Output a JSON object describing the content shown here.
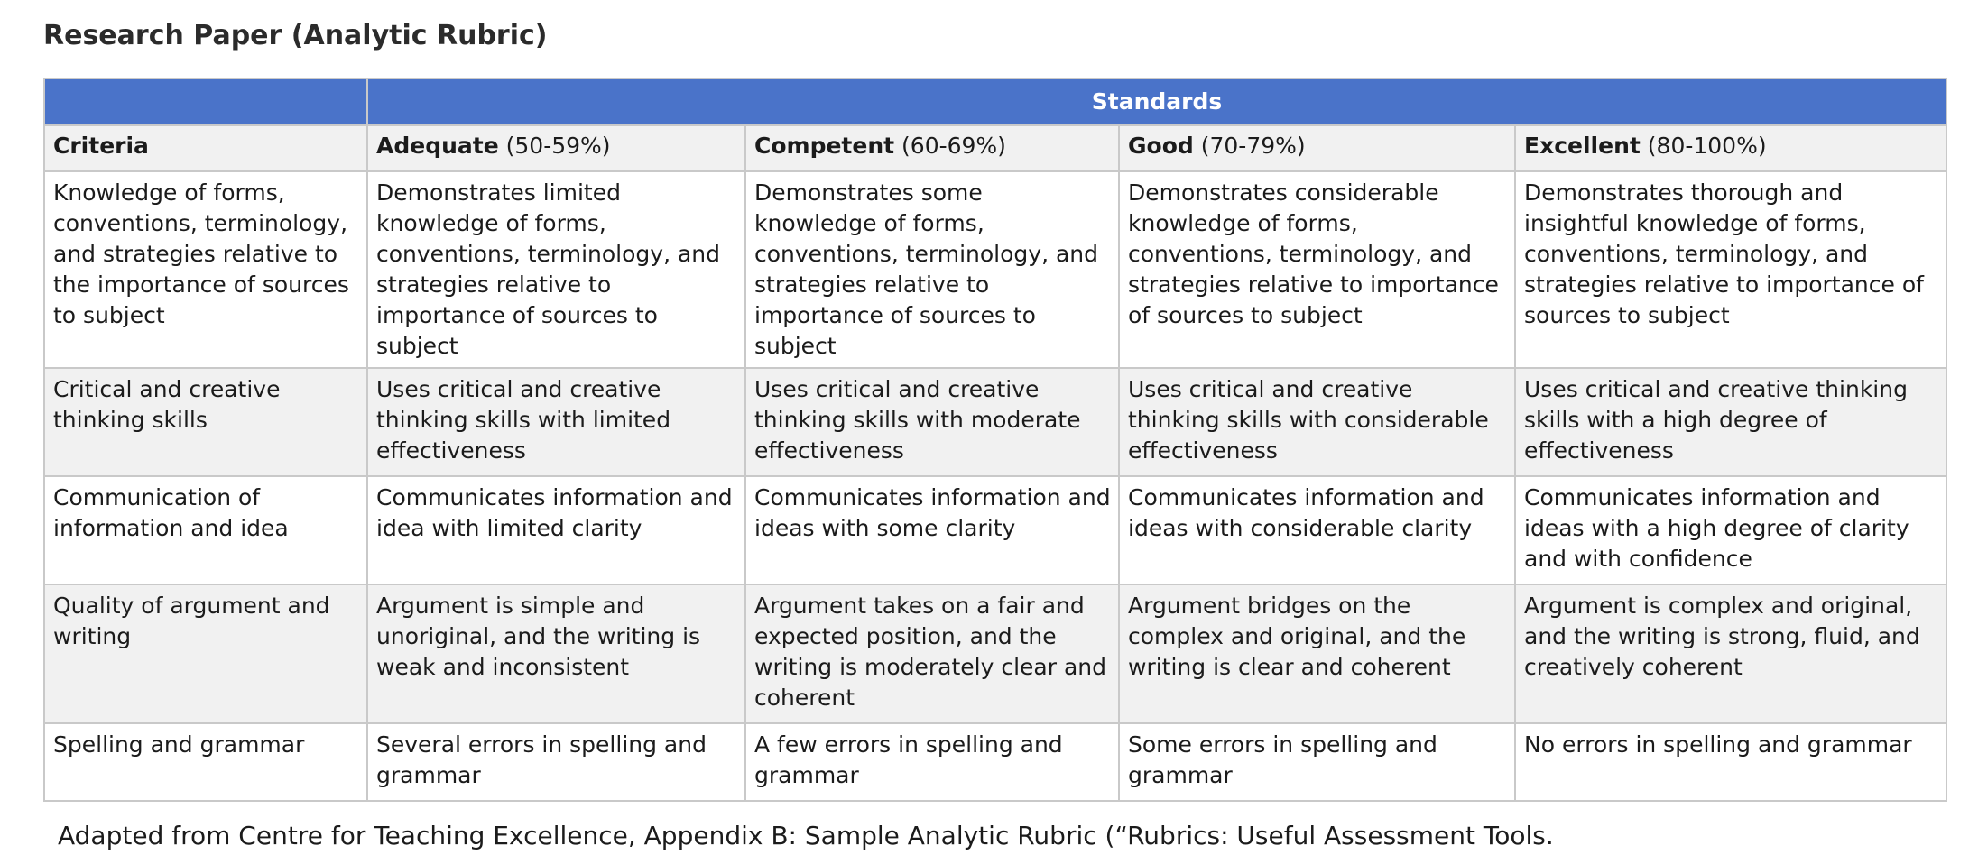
{
  "title": "Research Paper (Analytic Rubric)",
  "table": {
    "standards_header": "Standards",
    "criteria_header": "Criteria",
    "levels": [
      {
        "name": "Adequate",
        "range": "(50-59%)"
      },
      {
        "name": "Competent",
        "range": "(60-69%)"
      },
      {
        "name": "Good",
        "range": "(70-79%)"
      },
      {
        "name": "Excellent",
        "range": "(80-100%)"
      }
    ],
    "rows": [
      {
        "criterion": "Knowledge of forms, conventions, terminology, and strategies relative to the importance of sources to subject",
        "cells": [
          "Demonstrates limited knowledge of forms, conventions, terminology, and strategies relative to importance of sources to subject",
          "Demonstrates some knowledge of forms, conventions, terminology, and strategies relative to importance of sources to subject",
          "Demonstrates considerable knowledge of forms, conventions, terminology, and strategies relative to importance of sources to subject",
          "Demonstrates thorough and insightful knowledge of forms, conventions, terminology, and strategies relative to importance of sources to subject"
        ]
      },
      {
        "criterion": "Critical and creative thinking skills",
        "cells": [
          "Uses critical and creative thinking skills with limited effectiveness",
          "Uses critical and creative thinking skills with moderate effectiveness",
          "Uses critical and creative thinking skills with considerable effectiveness",
          "Uses critical and creative thinking skills with a high degree of effectiveness"
        ]
      },
      {
        "criterion": "Communication of information and idea",
        "cells": [
          "Communicates information and idea with limited clarity",
          "Communicates information and ideas with some clarity",
          "Communicates information and ideas with considerable clarity",
          "Communicates information and ideas with a high degree of clarity and with confidence"
        ]
      },
      {
        "criterion": "Quality of argument and writing",
        "cells": [
          "Argument is simple and unoriginal, and the writing is weak and inconsistent",
          "Argument takes on a fair and expected position, and the writing is moderately clear and coherent",
          "Argument bridges on the complex and original, and the writing is clear and coherent",
          "Argument is complex and original, and the writing is strong, fluid, and creatively coherent"
        ]
      },
      {
        "criterion": "Spelling and grammar",
        "cells": [
          "Several errors in spelling and grammar",
          "A few errors in spelling and grammar",
          "Some errors in spelling and grammar",
          "No errors in spelling and grammar"
        ]
      }
    ]
  },
  "footnote": "Adapted from Centre for Teaching Excellence, Appendix B: Sample Analytic Rubric (“Rubrics: Useful Assessment Tools.",
  "colors": {
    "header_bg": "#4a73c9",
    "header_text": "#ffffff",
    "alt_row_bg": "#f1f1f1",
    "border": "#c9c9c9"
  }
}
